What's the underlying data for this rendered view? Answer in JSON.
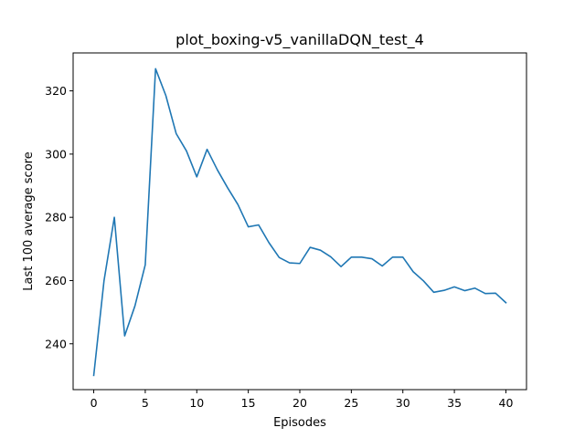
{
  "chart_data": {
    "type": "line",
    "title": "plot_boxing-v5_vanillaDQN_test_4",
    "xlabel": "Episodes",
    "ylabel": "Last 100 average score",
    "xlim": [
      -2,
      42
    ],
    "ylim": [
      225.5,
      332
    ],
    "xticks": [
      0,
      5,
      10,
      15,
      20,
      25,
      30,
      35,
      40
    ],
    "yticks": [
      240,
      260,
      280,
      300,
      320
    ],
    "grid": false,
    "line_color": "#1f77b4",
    "series": [
      {
        "x": [
          0,
          1,
          2,
          3,
          4,
          5,
          6,
          7,
          8,
          9,
          10,
          11,
          12,
          13,
          14,
          15,
          16,
          17,
          18,
          19,
          20,
          21,
          22,
          23,
          24,
          25,
          26,
          27,
          28,
          29,
          30,
          31,
          32,
          33,
          34,
          35,
          36,
          37,
          38,
          39,
          40
        ],
        "values": [
          230,
          260,
          280,
          242.5,
          252,
          265,
          327,
          318.5,
          306.5,
          301,
          292.8,
          301.5,
          295,
          289.3,
          284,
          277,
          277.6,
          272,
          267.3,
          265.6,
          265.4,
          270.5,
          269.6,
          267.5,
          264.4,
          267.4,
          267.4,
          266.9,
          264.6,
          267.4,
          267.4,
          262.8,
          259.9,
          256.3,
          256.9,
          258,
          256.8,
          257.6,
          255.9,
          256,
          253
        ]
      }
    ]
  }
}
